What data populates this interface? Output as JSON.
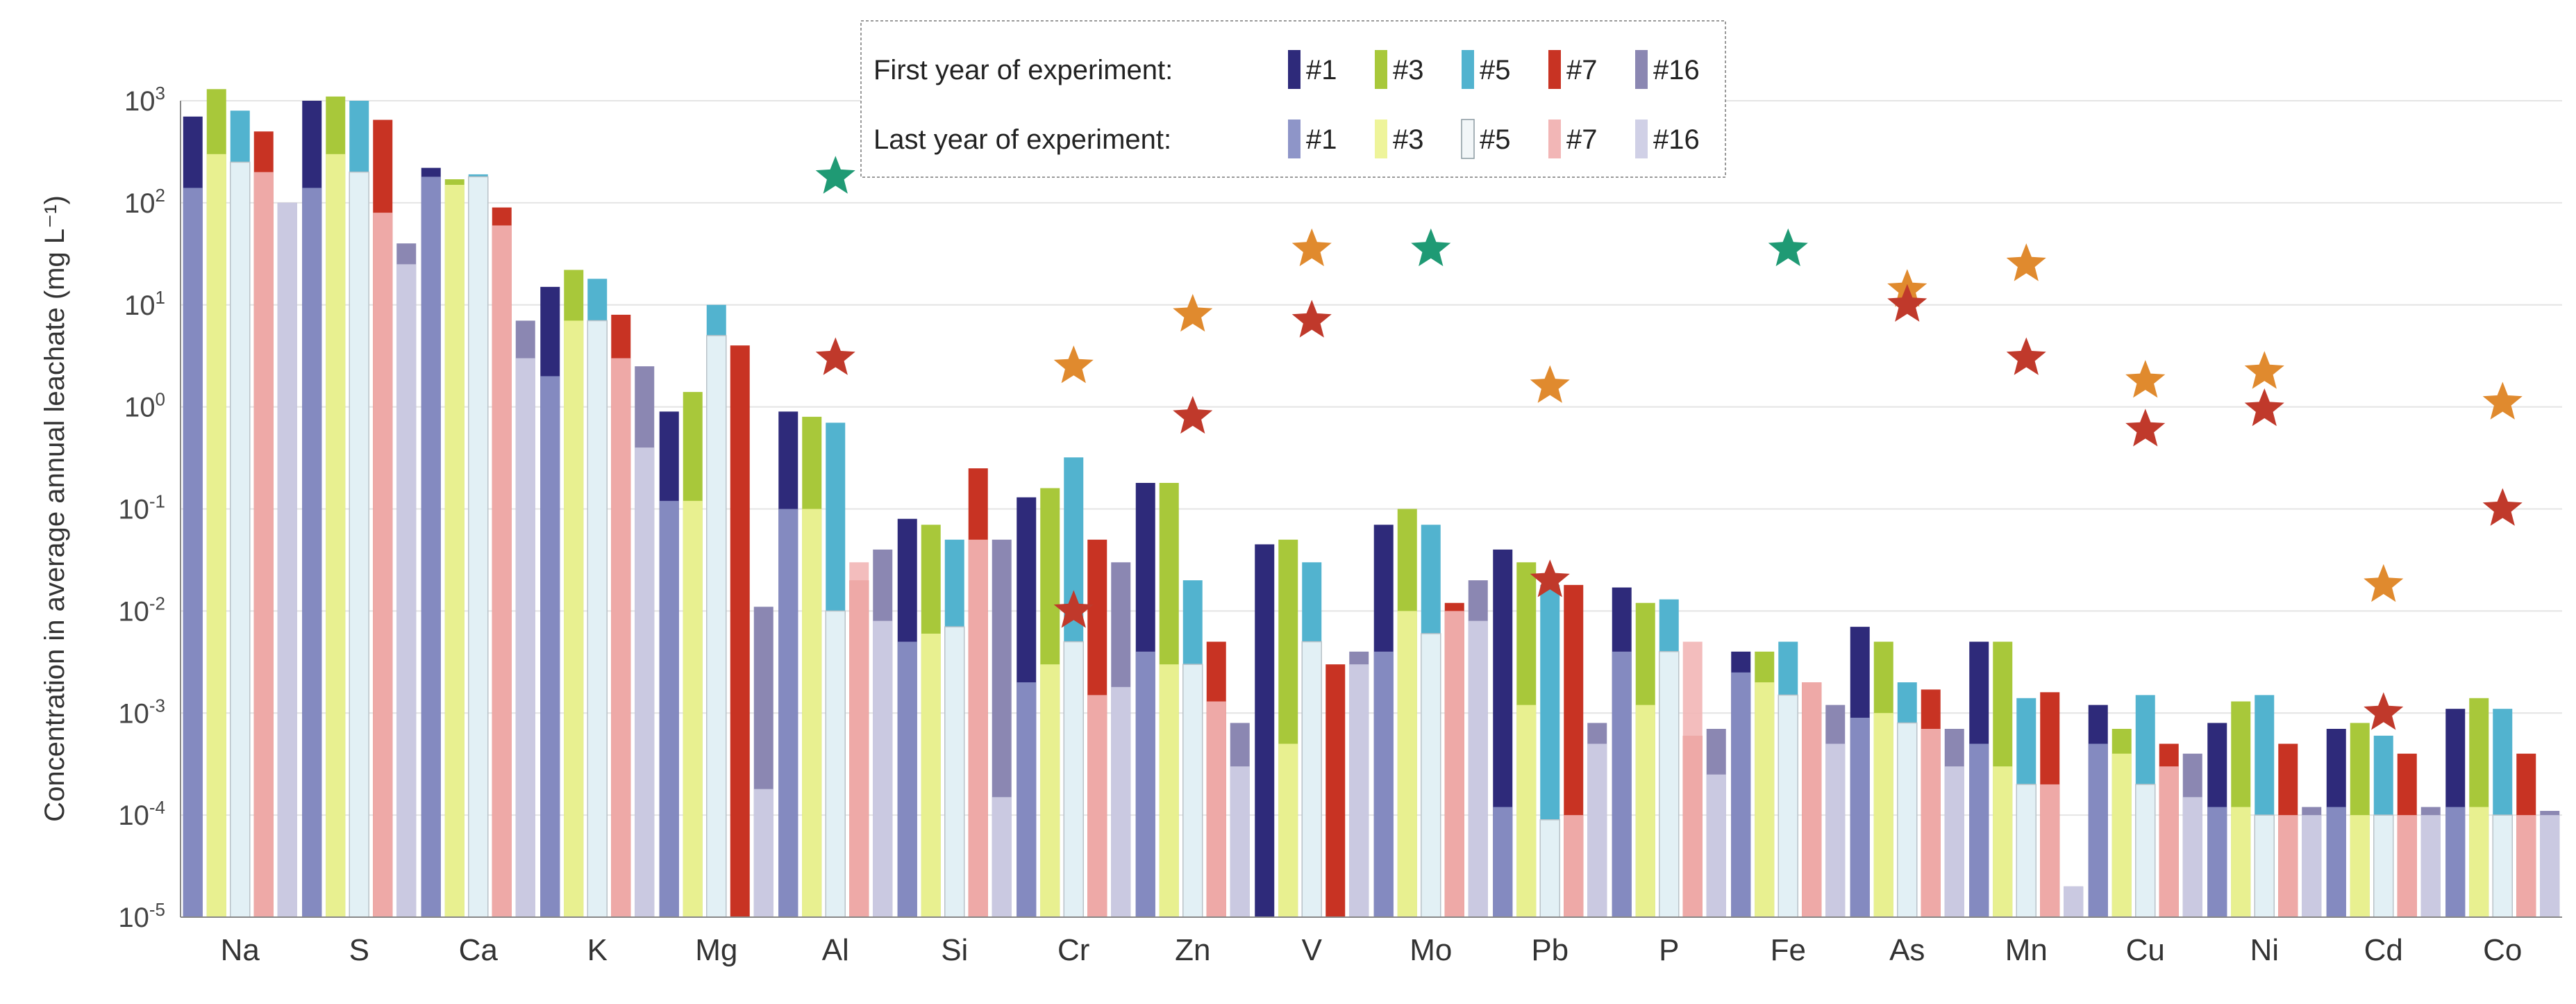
{
  "chart_data": {
    "type": "bar",
    "ylabel": "Concentration in average annual leachate (mg L⁻¹)",
    "y_scale": "log",
    "ylim": [
      1e-05,
      1000
    ],
    "y_ticks": [
      {
        "value": 1e-05,
        "base": "10",
        "exp": "-5"
      },
      {
        "value": 0.0001,
        "base": "10",
        "exp": "-4"
      },
      {
        "value": 0.001,
        "base": "10",
        "exp": "-3"
      },
      {
        "value": 0.01,
        "base": "10",
        "exp": "-2"
      },
      {
        "value": 0.1,
        "base": "10",
        "exp": "-1"
      },
      {
        "value": 1,
        "base": "10",
        "exp": "0"
      },
      {
        "value": 10,
        "base": "10",
        "exp": "1"
      },
      {
        "value": 100,
        "base": "10",
        "exp": "2"
      },
      {
        "value": 1000,
        "base": "10",
        "exp": "3"
      }
    ],
    "grid": true,
    "categories": [
      "Na",
      "S",
      "Ca",
      "K",
      "Mg",
      "Al",
      "Si",
      "Cr",
      "Zn",
      "V",
      "Mo",
      "Pb",
      "P",
      "Fe",
      "As",
      "Mn",
      "Cu",
      "Ni",
      "Cd",
      "Co"
    ],
    "legend": {
      "position": "top-center",
      "row_labels": [
        "First year of experiment:",
        "Last year of experiment:"
      ]
    },
    "series": [
      {
        "name": "#1",
        "first_color": "#2e2a7a",
        "last_color": "#8e95c8",
        "first": [
          700,
          1000,
          220,
          15,
          0.9,
          0.9,
          0.08,
          0.13,
          0.18,
          0.045,
          0.07,
          0.04,
          0.017,
          0.004,
          0.007,
          0.005,
          0.0012,
          0.0008,
          0.0007,
          0.0011
        ],
        "last": [
          140,
          140,
          180,
          2,
          0.12,
          0.1,
          0.005,
          0.002,
          0.004,
          1e-05,
          0.004,
          0.00012,
          0.004,
          0.0025,
          0.0009,
          0.0005,
          0.0005,
          0.00012,
          0.00012,
          0.00012
        ]
      },
      {
        "name": "#3",
        "first_color": "#a8c83a",
        "last_color": "#eef49a",
        "first": [
          1300,
          1100,
          170,
          22,
          1.4,
          0.8,
          0.07,
          0.16,
          0.18,
          0.05,
          0.1,
          0.03,
          0.012,
          0.004,
          0.005,
          0.005,
          0.0007,
          0.0013,
          0.0008,
          0.0014
        ],
        "last": [
          300,
          300,
          150,
          7,
          0.12,
          0.1,
          0.006,
          0.003,
          0.003,
          0.0005,
          0.01,
          0.0012,
          0.0012,
          0.002,
          0.001,
          0.0003,
          0.0004,
          0.00012,
          0.0001,
          0.00012
        ]
      },
      {
        "name": "#5",
        "first_color": "#52b3cf",
        "last_color": "#f2f6f8",
        "first": [
          800,
          1000,
          190,
          18,
          10,
          0.7,
          0.05,
          0.32,
          0.02,
          0.03,
          0.07,
          0.018,
          0.013,
          0.005,
          0.002,
          0.0014,
          0.0015,
          0.0015,
          0.0006,
          0.0011
        ],
        "last": [
          250,
          200,
          180,
          7,
          5,
          0.01,
          0.007,
          0.005,
          0.003,
          0.005,
          0.006,
          9e-05,
          0.004,
          0.0015,
          0.0008,
          0.0002,
          0.0002,
          0.0001,
          0.0001,
          0.0001
        ]
      },
      {
        "name": "#7",
        "first_color": "#c83323",
        "last_color": "#f2b6b6",
        "first": [
          500,
          650,
          90,
          8,
          4,
          0.02,
          0.25,
          0.05,
          0.005,
          0.003,
          0.012,
          0.018,
          0.0006,
          0.002,
          0.0017,
          0.0016,
          0.0005,
          0.0005,
          0.0004,
          0.0004
        ],
        "last": [
          200,
          80,
          60,
          3,
          1e-05,
          0.03,
          0.05,
          0.0015,
          0.0013,
          1e-05,
          0.01,
          0.0001,
          0.005,
          0.002,
          0.0007,
          0.0002,
          0.0003,
          0.0001,
          0.0001,
          0.0001
        ]
      },
      {
        "name": "#16",
        "first_color": "#8b87b2",
        "last_color": "#d0d0e6",
        "first": [
          100,
          40,
          7,
          2.5,
          0.011,
          0.04,
          0.05,
          0.03,
          0.0008,
          0.004,
          0.02,
          0.0008,
          0.0007,
          0.0012,
          0.0007,
          2e-05,
          0.0004,
          0.00012,
          0.00012,
          0.00011
        ],
        "last": [
          100,
          25,
          3,
          0.4,
          0.00018,
          0.008,
          0.00015,
          0.0018,
          0.0003,
          0.003,
          0.008,
          0.0005,
          0.00025,
          0.0005,
          0.0003,
          2e-05,
          0.00015,
          0.0001,
          0.0001,
          0.0001
        ]
      }
    ],
    "markers": [
      {
        "category": "Al",
        "value": 180,
        "color": "#1f9a74"
      },
      {
        "category": "Mo",
        "value": 35,
        "color": "#1f9a74"
      },
      {
        "category": "Fe",
        "value": 35,
        "color": "#1f9a74"
      },
      {
        "category": "Al",
        "value": 3,
        "color": "#c0392b"
      },
      {
        "category": "Cr",
        "value": 2.5,
        "color": "#e08a2e"
      },
      {
        "category": "Cr",
        "value": 0.01,
        "color": "#c0392b"
      },
      {
        "category": "Zn",
        "value": 8,
        "color": "#e08a2e"
      },
      {
        "category": "Zn",
        "value": 0.8,
        "color": "#c0392b"
      },
      {
        "category": "V",
        "value": 35,
        "color": "#e08a2e"
      },
      {
        "category": "V",
        "value": 7,
        "color": "#c0392b"
      },
      {
        "category": "Pb",
        "value": 1.6,
        "color": "#e08a2e"
      },
      {
        "category": "Pb",
        "value": 0.02,
        "color": "#c0392b"
      },
      {
        "category": "As",
        "value": 14,
        "color": "#e08a2e"
      },
      {
        "category": "As",
        "value": 10,
        "color": "#c0392b"
      },
      {
        "category": "Mn",
        "value": 25,
        "color": "#e08a2e"
      },
      {
        "category": "Mn",
        "value": 3,
        "color": "#c0392b"
      },
      {
        "category": "Cu",
        "value": 1.8,
        "color": "#e08a2e"
      },
      {
        "category": "Cu",
        "value": 0.6,
        "color": "#c0392b"
      },
      {
        "category": "Ni",
        "value": 2.2,
        "color": "#e08a2e"
      },
      {
        "category": "Ni",
        "value": 0.95,
        "color": "#c0392b"
      },
      {
        "category": "Cd",
        "value": 0.018,
        "color": "#e08a2e"
      },
      {
        "category": "Cd",
        "value": 0.001,
        "color": "#c0392b"
      },
      {
        "category": "Co",
        "value": 1.1,
        "color": "#e08a2e"
      },
      {
        "category": "Co",
        "value": 0.1,
        "color": "#c0392b"
      }
    ]
  }
}
